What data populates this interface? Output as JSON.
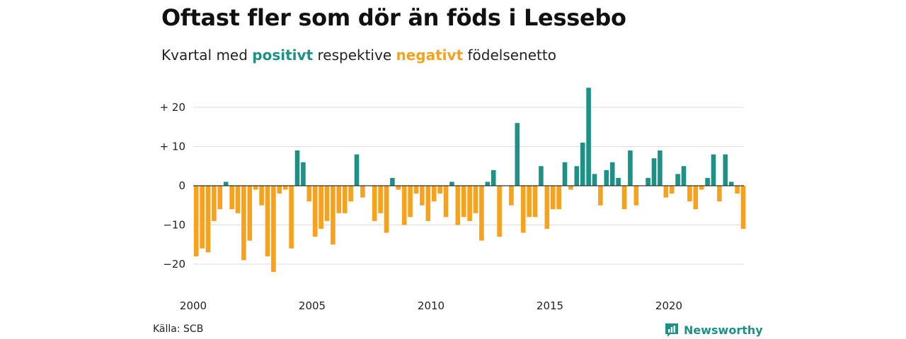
{
  "title": "Oftast fler som dör än föds i Lessebo",
  "subtitle": {
    "prefix": "Kvartal med",
    "positive_word": "positivt",
    "middle": "respektive",
    "negative_word": "negativt",
    "suffix": "födelsenetto"
  },
  "source": "Källa: SCB",
  "brand": {
    "name": "Newsworthy",
    "icon": "newsworthy-logo-icon"
  },
  "colors": {
    "positive": "#1e9186",
    "negative": "#f6a21d",
    "grid": "#dddddd",
    "zero_line": "#333333"
  },
  "chart_data": {
    "type": "bar",
    "title": "Oftast fler som dör än föds i Lessebo",
    "subtitle": "Kvartal med positivt respektive negativt födelsenetto",
    "xlabel": "",
    "ylabel": "",
    "x_start": "2000-Q1",
    "x_tick_labels": [
      "2000",
      "2005",
      "2010",
      "2015",
      "2020"
    ],
    "y_ticks": [
      {
        "value": 20,
        "label": "+ 20"
      },
      {
        "value": 10,
        "label": "+ 10"
      },
      {
        "value": 0,
        "label": "0"
      },
      {
        "value": -10,
        "label": "−10"
      },
      {
        "value": -20,
        "label": "−20"
      }
    ],
    "ylim": [
      -24,
      26
    ],
    "grid": true,
    "values": [
      -18,
      -16,
      -17,
      -9,
      -6,
      1,
      -6,
      -7,
      -19,
      -14,
      -1,
      -5,
      -18,
      -22,
      -2,
      -1,
      -16,
      9,
      6,
      -4,
      -13,
      -11,
      -9,
      -15,
      -7,
      -7,
      -4,
      8,
      -3,
      0,
      -9,
      -7,
      -12,
      2,
      -1,
      -10,
      -8,
      -2,
      -5,
      -9,
      -4,
      -2,
      -8,
      1,
      -10,
      -8,
      -9,
      -7,
      -14,
      1,
      4,
      -13,
      0,
      -5,
      16,
      -12,
      -8,
      -8,
      5,
      -11,
      -6,
      -6,
      6,
      -1,
      5,
      11,
      25,
      3,
      -5,
      4,
      6,
      2,
      -6,
      9,
      -5,
      0,
      2,
      7,
      9,
      -3,
      -2,
      3,
      5,
      -4,
      -6,
      -1,
      2,
      8,
      -4,
      8,
      1,
      -2,
      -11
    ]
  }
}
